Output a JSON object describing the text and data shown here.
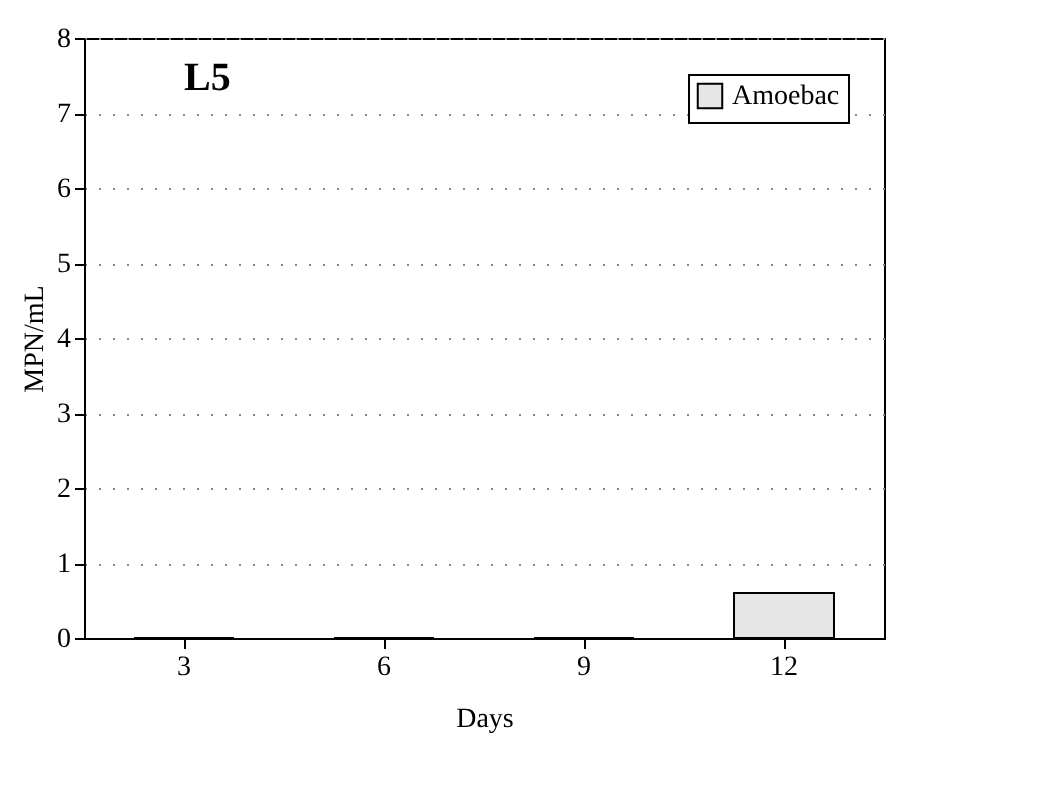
{
  "chart_data": {
    "type": "bar",
    "xlabel": "Days",
    "ylabel": "MPN/mL",
    "annotations": [
      "L5"
    ],
    "categories": [
      "3",
      "6",
      "9",
      "12"
    ],
    "series": [
      {
        "name": "Amoebac",
        "color": "#e6e6e6",
        "values": [
          0,
          0,
          0,
          0.6
        ]
      }
    ],
    "ylim": [
      0,
      8
    ],
    "yticks": [
      0,
      1,
      2,
      3,
      4,
      5,
      6,
      7,
      8
    ],
    "grid": "y",
    "legend": "top right"
  }
}
